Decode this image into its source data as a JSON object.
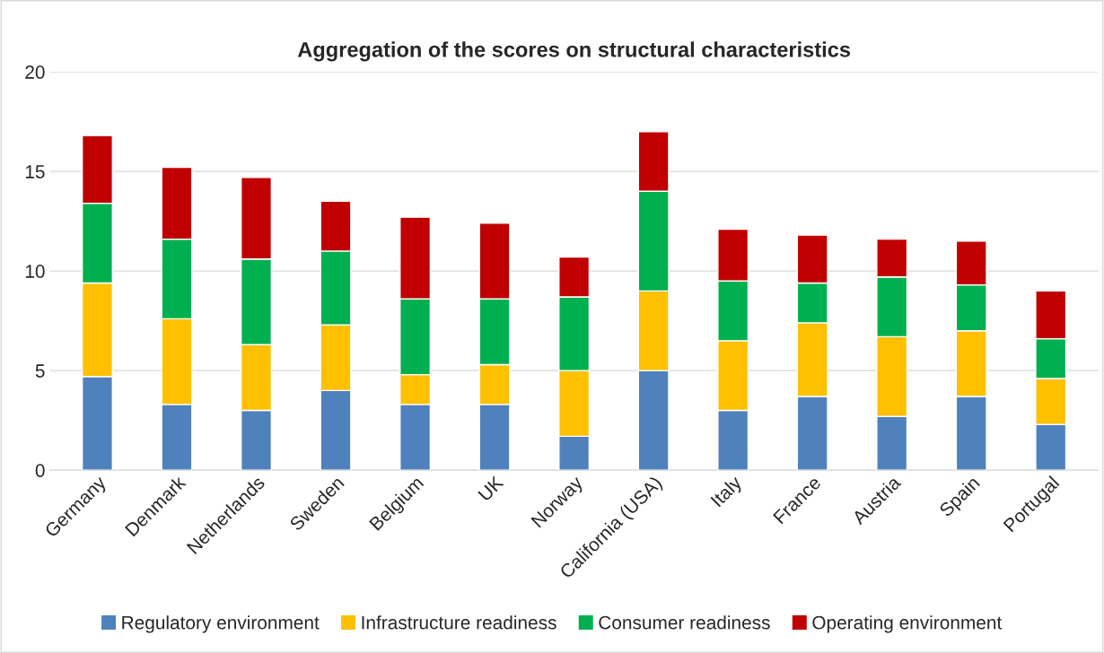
{
  "chart_data": {
    "type": "bar",
    "title": "Aggregation of the scores on structural characteristics",
    "categories": [
      "Germany",
      "Denmark",
      "Netherlands",
      "Sweden",
      "Belgium",
      "UK",
      "Norway",
      "California (USA)",
      "Italy",
      "France",
      "Austria",
      "Spain",
      "Portugal"
    ],
    "stacked": true,
    "series": [
      {
        "name": "Regulatory environment",
        "color": "#4f81bd",
        "values": [
          4.7,
          3.3,
          3.0,
          4.0,
          3.3,
          3.3,
          1.7,
          5.0,
          3.0,
          3.7,
          2.7,
          3.7,
          2.3
        ]
      },
      {
        "name": "Infrastructure readiness",
        "color": "#ffc000",
        "values": [
          4.7,
          4.3,
          3.3,
          3.3,
          1.5,
          2.0,
          3.3,
          4.0,
          3.5,
          3.7,
          4.0,
          3.3,
          2.3
        ]
      },
      {
        "name": "Consumer readiness",
        "color": "#00b050",
        "values": [
          4.0,
          4.0,
          4.3,
          3.7,
          3.8,
          3.3,
          3.7,
          5.0,
          3.0,
          2.0,
          3.0,
          2.3,
          2.0
        ]
      },
      {
        "name": "Operating environment",
        "color": "#c00000",
        "values": [
          3.4,
          3.6,
          4.1,
          2.5,
          4.1,
          3.8,
          2.0,
          3.0,
          2.6,
          2.4,
          1.9,
          2.2,
          2.4
        ]
      }
    ],
    "ylim": [
      0,
      20
    ],
    "yticks": [
      0,
      5,
      10,
      15,
      20
    ],
    "grid": "y",
    "legend": "bottom"
  }
}
